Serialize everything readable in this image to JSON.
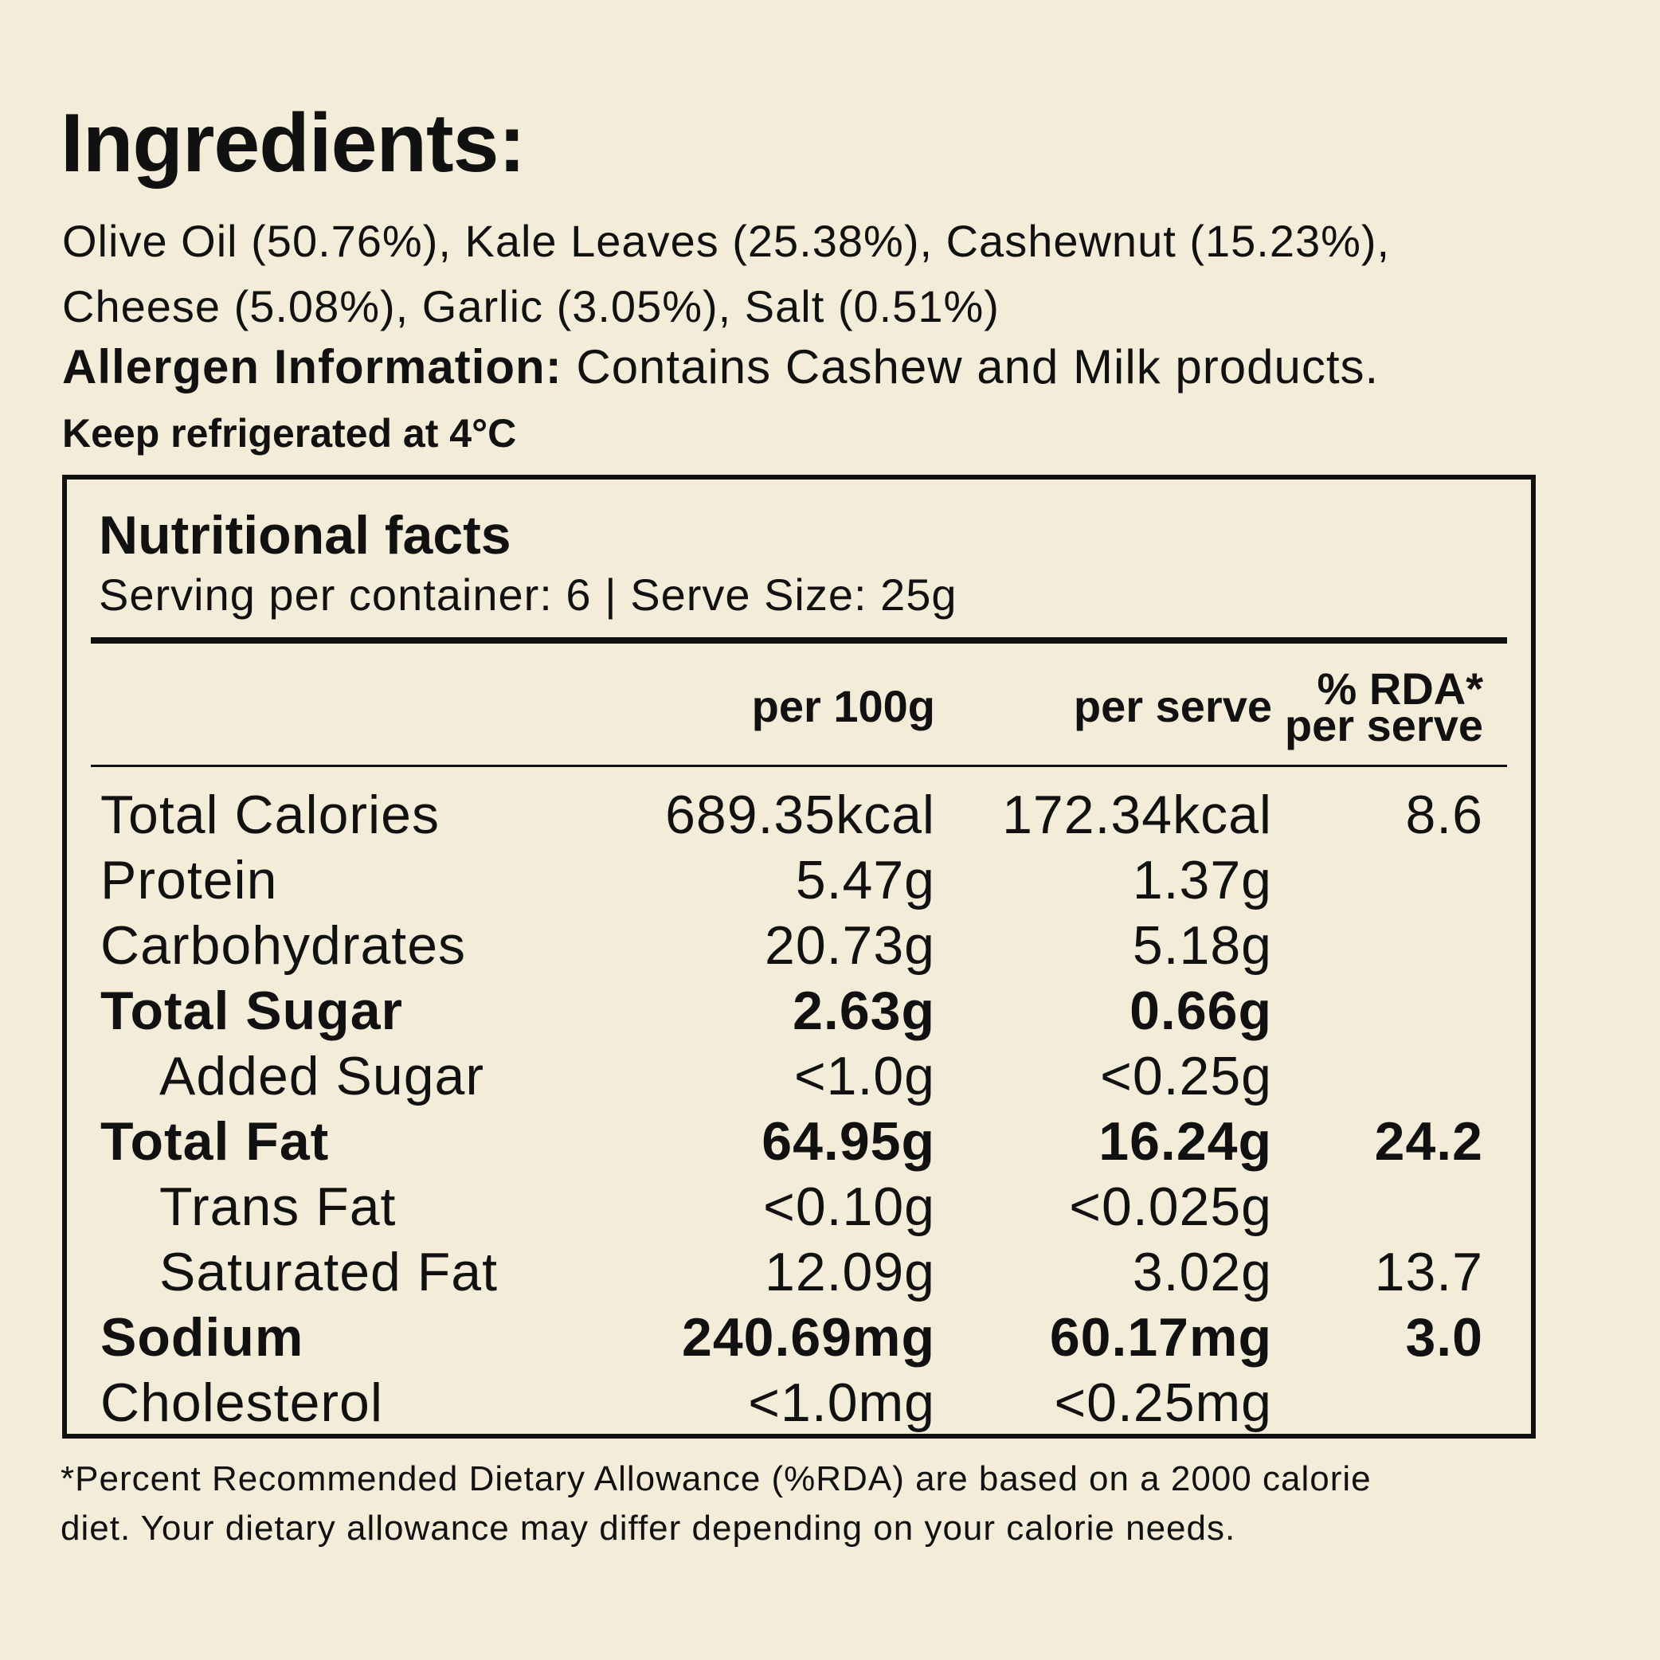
{
  "heading": "Ingredients:",
  "ingredients_line1": "Olive Oil (50.76%), Kale Leaves (25.38%), Cashewnut (15.23%),",
  "ingredients_line2": "Cheese (5.08%), Garlic (3.05%), Salt (0.51%)",
  "allergen": {
    "label": "Allergen Information:",
    "text": " Contains Cashew and Milk products."
  },
  "storage": "Keep refrigerated at 4°C",
  "panel": {
    "title": "Nutritional facts",
    "serving": "Serving per container: 6 | Serve Size: 25g",
    "columns": {
      "per100": "per 100g",
      "perserve": "per serve",
      "rda_line1": "% RDA*",
      "rda_line2": "per serve"
    },
    "rows": [
      {
        "name": "Total Calories",
        "per100": "689.35kcal",
        "perserve": "172.34kcal",
        "rda": "8.6"
      },
      {
        "name": "Protein",
        "per100": "5.47g",
        "perserve": "1.37g",
        "rda": ""
      },
      {
        "name": "Carbohydrates",
        "per100": "20.73g",
        "perserve": "5.18g",
        "rda": ""
      },
      {
        "name": "Total Sugar",
        "per100": "2.63g",
        "perserve": "0.66g",
        "rda": ""
      },
      {
        "name": "Added Sugar",
        "per100": "<1.0g",
        "perserve": "<0.25g",
        "rda": ""
      },
      {
        "name": "Total Fat",
        "per100": "64.95g",
        "perserve": "16.24g",
        "rda": "24.2"
      },
      {
        "name": "Trans Fat",
        "per100": "<0.10g",
        "perserve": "<0.025g",
        "rda": ""
      },
      {
        "name": "Saturated Fat",
        "per100": "12.09g",
        "perserve": "3.02g",
        "rda": "13.7"
      },
      {
        "name": "Sodium",
        "per100": "240.69mg",
        "perserve": "60.17mg",
        "rda": "3.0"
      },
      {
        "name": "Cholesterol",
        "per100": "<1.0mg",
        "perserve": "<0.25mg",
        "rda": ""
      }
    ]
  },
  "footnote_line1": "*Percent Recommended Dietary Allowance (%RDA) are based on a 2000 calorie",
  "footnote_line2": "diet. Your dietary allowance may differ depending on your calorie needs.",
  "colors": {
    "background": "#f2ecd8",
    "text": "#111111"
  }
}
